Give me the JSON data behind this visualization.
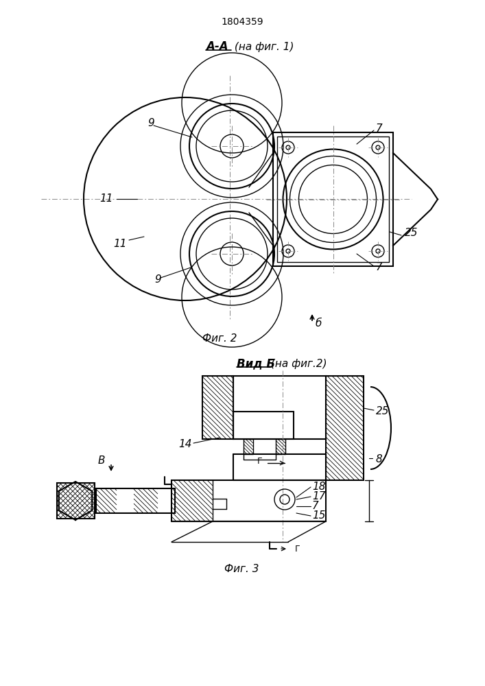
{
  "title": "1804359",
  "fig2_label_bold": "A-A",
  "fig2_label_rest": " (на фиг. 1)",
  "fig3_label_bold": "Вид Б",
  "fig3_label_rest": " (на фиг.2)",
  "fig2_caption": "Фиг. 2",
  "fig3_caption": "Фиг. 3",
  "bg_color": "#ffffff",
  "lc": "#000000"
}
